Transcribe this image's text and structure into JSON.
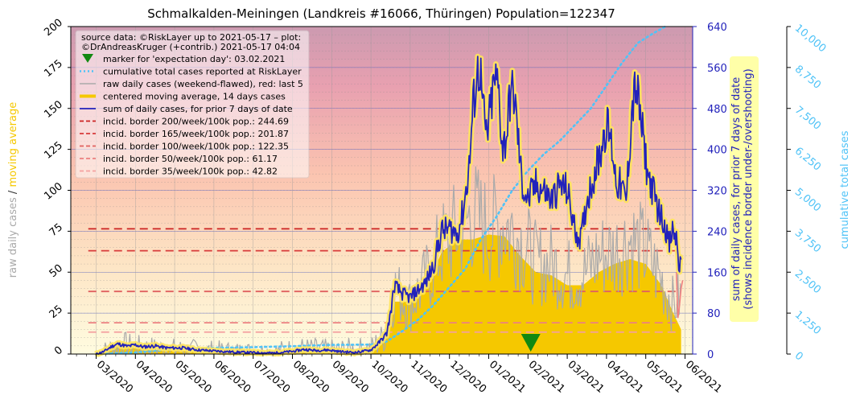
{
  "chart_data": {
    "type": "line",
    "title": "Schmalkalden-Meiningen (Landkreis #16066, Thüringen) Population=122347",
    "axes": {
      "left": {
        "label_parts": [
          "raw daily cases",
          " / ",
          "moving average"
        ],
        "label_colors": [
          "#aaaaaa",
          "#333333",
          "#f5c800"
        ],
        "range": [
          0,
          200
        ],
        "ticks": [
          "0",
          "25",
          "50",
          "75",
          "100",
          "125",
          "150",
          "175",
          "200"
        ]
      },
      "right1": {
        "label_lines": [
          "sum of daily cases, for prior 7 days of date",
          "(shows incidence border under-/overshooting)"
        ],
        "range": [
          0,
          640
        ],
        "ticks": [
          "0",
          "80",
          "160",
          "240",
          "320",
          "400",
          "480",
          "560",
          "640"
        ],
        "color": "#2222bb"
      },
      "right2": {
        "label": "cumulative total cases",
        "range": [
          0,
          10000
        ],
        "ticks": [
          "0",
          "1,250",
          "2,500",
          "3,750",
          "5,000",
          "6,250",
          "7,500",
          "8,750",
          "10,000"
        ],
        "color": "#4fc3f7"
      },
      "x": {
        "ticks": [
          "03/2020",
          "04/2020",
          "05/2020",
          "06/2020",
          "07/2020",
          "08/2020",
          "09/2020",
          "10/2020",
          "11/2020",
          "12/2020",
          "01/2021",
          "02/2021",
          "03/2021",
          "04/2021",
          "05/2021",
          "06/2021"
        ]
      }
    },
    "legend": {
      "position": "top-left",
      "source_lines": [
        "source data: ©RiskLayer up to 2021-05-17 – plot:",
        "©DrAndreasKruger (+contrib.) 2021-05-17 04:04"
      ],
      "entries": [
        {
          "label": "marker for 'expectation day': 03.02.2021",
          "style": "marker",
          "color": "#118811"
        },
        {
          "label": "cumulative total cases reported at RiskLayer",
          "style": "dotted",
          "color": "#4fc3f7"
        },
        {
          "label": "raw daily cases (weekend-flawed), red: last 5",
          "style": "solid-thin",
          "color": "#aaaaaa"
        },
        {
          "label": "centered moving average, 14 days cases",
          "style": "solid-thick",
          "color": "#f5c800"
        },
        {
          "label": "sum of daily cases, for prior 7 days of date",
          "style": "solid",
          "color": "#2222bb"
        },
        {
          "label": "incid. border 200/week/100k pop.: 244.69",
          "style": "dash",
          "color": "#cc2222"
        },
        {
          "label": "incid. border 165/week/100k pop.: 201.87",
          "style": "dash",
          "color": "#d83a3a"
        },
        {
          "label": "incid. border 100/week/100k pop.: 122.35",
          "style": "dash",
          "color": "#e06060"
        },
        {
          "label": "incid. border   50/week/100k pop.: 61.17",
          "style": "dash",
          "color": "#ec8080"
        },
        {
          "label": "incid. border   35/week/100k pop.: 42.82",
          "style": "dash",
          "color": "#f4a0a0"
        }
      ]
    },
    "expectation_day": "03.02.2021",
    "incidence_borders": [
      244.69,
      201.87,
      122.35,
      61.17,
      42.82
    ],
    "weekly_sum_anchors": [
      [
        0.0,
        0
      ],
      [
        0.2,
        5
      ],
      [
        0.4,
        15
      ],
      [
        0.55,
        20
      ],
      [
        0.8,
        15
      ],
      [
        1.0,
        18
      ],
      [
        1.2,
        14
      ],
      [
        1.5,
        16
      ],
      [
        1.8,
        12
      ],
      [
        2.2,
        12
      ],
      [
        2.6,
        8
      ],
      [
        3.0,
        6
      ],
      [
        3.5,
        4
      ],
      [
        4.0,
        3
      ],
      [
        4.5,
        2
      ],
      [
        5.0,
        5
      ],
      [
        5.3,
        9
      ],
      [
        5.6,
        7
      ],
      [
        5.9,
        8
      ],
      [
        6.2,
        5
      ],
      [
        6.6,
        3
      ],
      [
        7.0,
        8
      ],
      [
        7.2,
        22
      ],
      [
        7.4,
        40
      ],
      [
        7.5,
        80
      ],
      [
        7.6,
        135
      ],
      [
        7.7,
        125
      ],
      [
        7.8,
        118
      ],
      [
        8.0,
        110
      ],
      [
        8.2,
        125
      ],
      [
        8.4,
        140
      ],
      [
        8.6,
        175
      ],
      [
        8.8,
        240
      ],
      [
        9.0,
        245
      ],
      [
        9.2,
        235
      ],
      [
        9.35,
        280
      ],
      [
        9.5,
        365
      ],
      [
        9.6,
        480
      ],
      [
        9.7,
        545
      ],
      [
        9.78,
        560
      ],
      [
        9.85,
        480
      ],
      [
        9.95,
        420
      ],
      [
        10.05,
        480
      ],
      [
        10.15,
        535
      ],
      [
        10.25,
        520
      ],
      [
        10.35,
        400
      ],
      [
        10.45,
        425
      ],
      [
        10.55,
        510
      ],
      [
        10.65,
        505
      ],
      [
        10.75,
        420
      ],
      [
        10.85,
        330
      ],
      [
        11.0,
        300
      ],
      [
        11.2,
        330
      ],
      [
        11.4,
        320
      ],
      [
        11.6,
        300
      ],
      [
        11.8,
        330
      ],
      [
        12.0,
        320
      ],
      [
        12.2,
        240
      ],
      [
        12.35,
        225
      ],
      [
        12.5,
        300
      ],
      [
        12.7,
        355
      ],
      [
        12.85,
        395
      ],
      [
        12.95,
        440
      ],
      [
        13.05,
        440
      ],
      [
        13.15,
        400
      ],
      [
        13.25,
        335
      ],
      [
        13.35,
        330
      ],
      [
        13.5,
        300
      ],
      [
        13.65,
        480
      ],
      [
        13.75,
        525
      ],
      [
        13.85,
        470
      ],
      [
        13.95,
        410
      ],
      [
        14.05,
        350
      ],
      [
        14.2,
        315
      ],
      [
        14.35,
        275
      ],
      [
        14.5,
        250
      ],
      [
        14.6,
        210
      ],
      [
        14.68,
        240
      ],
      [
        14.78,
        225
      ],
      [
        14.85,
        170
      ],
      [
        14.9,
        175
      ]
    ],
    "moving_average_anchors": [
      [
        0.0,
        0
      ],
      [
        0.2,
        1
      ],
      [
        0.5,
        4
      ],
      [
        0.8,
        4
      ],
      [
        1.2,
        3
      ],
      [
        2.0,
        2
      ],
      [
        3.0,
        1
      ],
      [
        4.0,
        0.5
      ],
      [
        5.0,
        1.5
      ],
      [
        6.0,
        1.5
      ],
      [
        7.0,
        2
      ],
      [
        7.4,
        10
      ],
      [
        7.6,
        32
      ],
      [
        8.0,
        32
      ],
      [
        8.4,
        40
      ],
      [
        8.8,
        62
      ],
      [
        9.2,
        70
      ],
      [
        9.6,
        70
      ],
      [
        10.0,
        73
      ],
      [
        10.4,
        72
      ],
      [
        10.8,
        60
      ],
      [
        11.2,
        50
      ],
      [
        11.6,
        48
      ],
      [
        12.0,
        42
      ],
      [
        12.4,
        42
      ],
      [
        12.8,
        50
      ],
      [
        13.2,
        55
      ],
      [
        13.6,
        58
      ],
      [
        14.0,
        55
      ],
      [
        14.4,
        42
      ],
      [
        14.7,
        25
      ],
      [
        14.9,
        15
      ]
    ],
    "cumulative_anchors": [
      [
        0.0,
        0
      ],
      [
        1.0,
        50
      ],
      [
        2.0,
        150
      ],
      [
        3.0,
        190
      ],
      [
        4.0,
        210
      ],
      [
        5.0,
        240
      ],
      [
        6.0,
        280
      ],
      [
        7.0,
        290
      ],
      [
        7.4,
        380
      ],
      [
        7.8,
        700
      ],
      [
        8.2,
        1050
      ],
      [
        8.6,
        1500
      ],
      [
        9.0,
        2050
      ],
      [
        9.4,
        2600
      ],
      [
        9.8,
        3500
      ],
      [
        10.2,
        4200
      ],
      [
        10.6,
        5000
      ],
      [
        11.0,
        5600
      ],
      [
        11.4,
        6100
      ],
      [
        11.8,
        6500
      ],
      [
        12.2,
        7000
      ],
      [
        12.6,
        7500
      ],
      [
        13.0,
        8200
      ],
      [
        13.4,
        8900
      ],
      [
        13.8,
        9500
      ],
      [
        14.2,
        9800
      ],
      [
        14.5,
        10000
      ]
    ],
    "raw_anchors": [
      [
        0.0,
        0
      ],
      [
        0.3,
        2
      ],
      [
        0.6,
        6
      ],
      [
        1.0,
        4
      ],
      [
        1.5,
        3
      ],
      [
        2.5,
        2
      ],
      [
        3.5,
        1
      ],
      [
        4.5,
        1
      ],
      [
        5.2,
        3
      ],
      [
        6.0,
        2
      ],
      [
        7.0,
        3
      ],
      [
        7.4,
        12
      ],
      [
        7.6,
        40
      ],
      [
        8.0,
        30
      ],
      [
        8.4,
        45
      ],
      [
        8.8,
        65
      ],
      [
        9.2,
        75
      ],
      [
        9.6,
        85
      ],
      [
        10.0,
        75
      ],
      [
        10.4,
        80
      ],
      [
        10.8,
        70
      ],
      [
        11.2,
        55
      ],
      [
        11.6,
        55
      ],
      [
        12.0,
        48
      ],
      [
        12.4,
        48
      ],
      [
        12.8,
        60
      ],
      [
        13.2,
        62
      ],
      [
        13.6,
        70
      ],
      [
        14.0,
        62
      ],
      [
        14.4,
        45
      ],
      [
        14.7,
        30
      ],
      [
        14.9,
        35
      ]
    ],
    "raw_red_last5": [
      [
        14.78,
        50
      ],
      [
        14.82,
        22
      ],
      [
        14.86,
        30
      ],
      [
        14.9,
        40
      ],
      [
        14.94,
        45
      ]
    ]
  }
}
